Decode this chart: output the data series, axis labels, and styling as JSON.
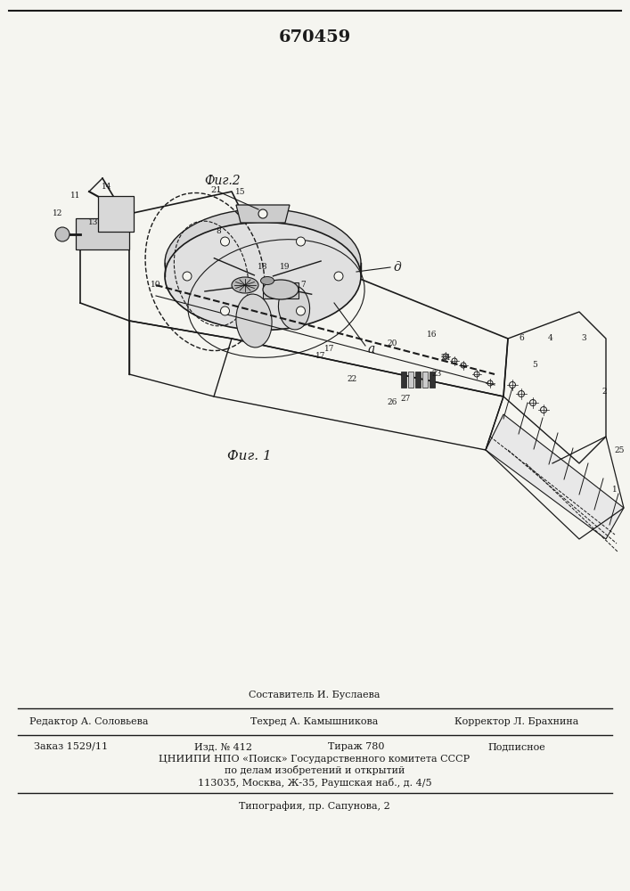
{
  "patent_number": "670459",
  "fig1_caption": "Фиг. 1",
  "fig2_caption": "Фиг.2",
  "footer_line1_left": "Редактор А. Соловьева",
  "footer_line1_center": "Техред А. Камышникова",
  "footer_line1_right": "Корректор Л. Брахнина",
  "footer_above_line": "Составитель И. Буслаева",
  "footer_line2_col1": "Заказ 1529/11",
  "footer_line2_col2": "Изд. № 412",
  "footer_line2_col3": "Тираж 780",
  "footer_line2_col4": "Подписное",
  "footer_line3": "ЦНИИПИ НПО «Поиск» Государственного комитета СССР",
  "footer_line4": "по делам изобретений и открытий",
  "footer_line5": "113035, Москва, Ж-35, Раушская наб., д. 4/5",
  "footer_line6": "Типография, пр. Сапунова, 2",
  "bg_color": "#f5f5f0",
  "line_color": "#1a1a1a",
  "fig1_label_a": "a",
  "fig1_label_d": "д",
  "fig2_num": "21"
}
